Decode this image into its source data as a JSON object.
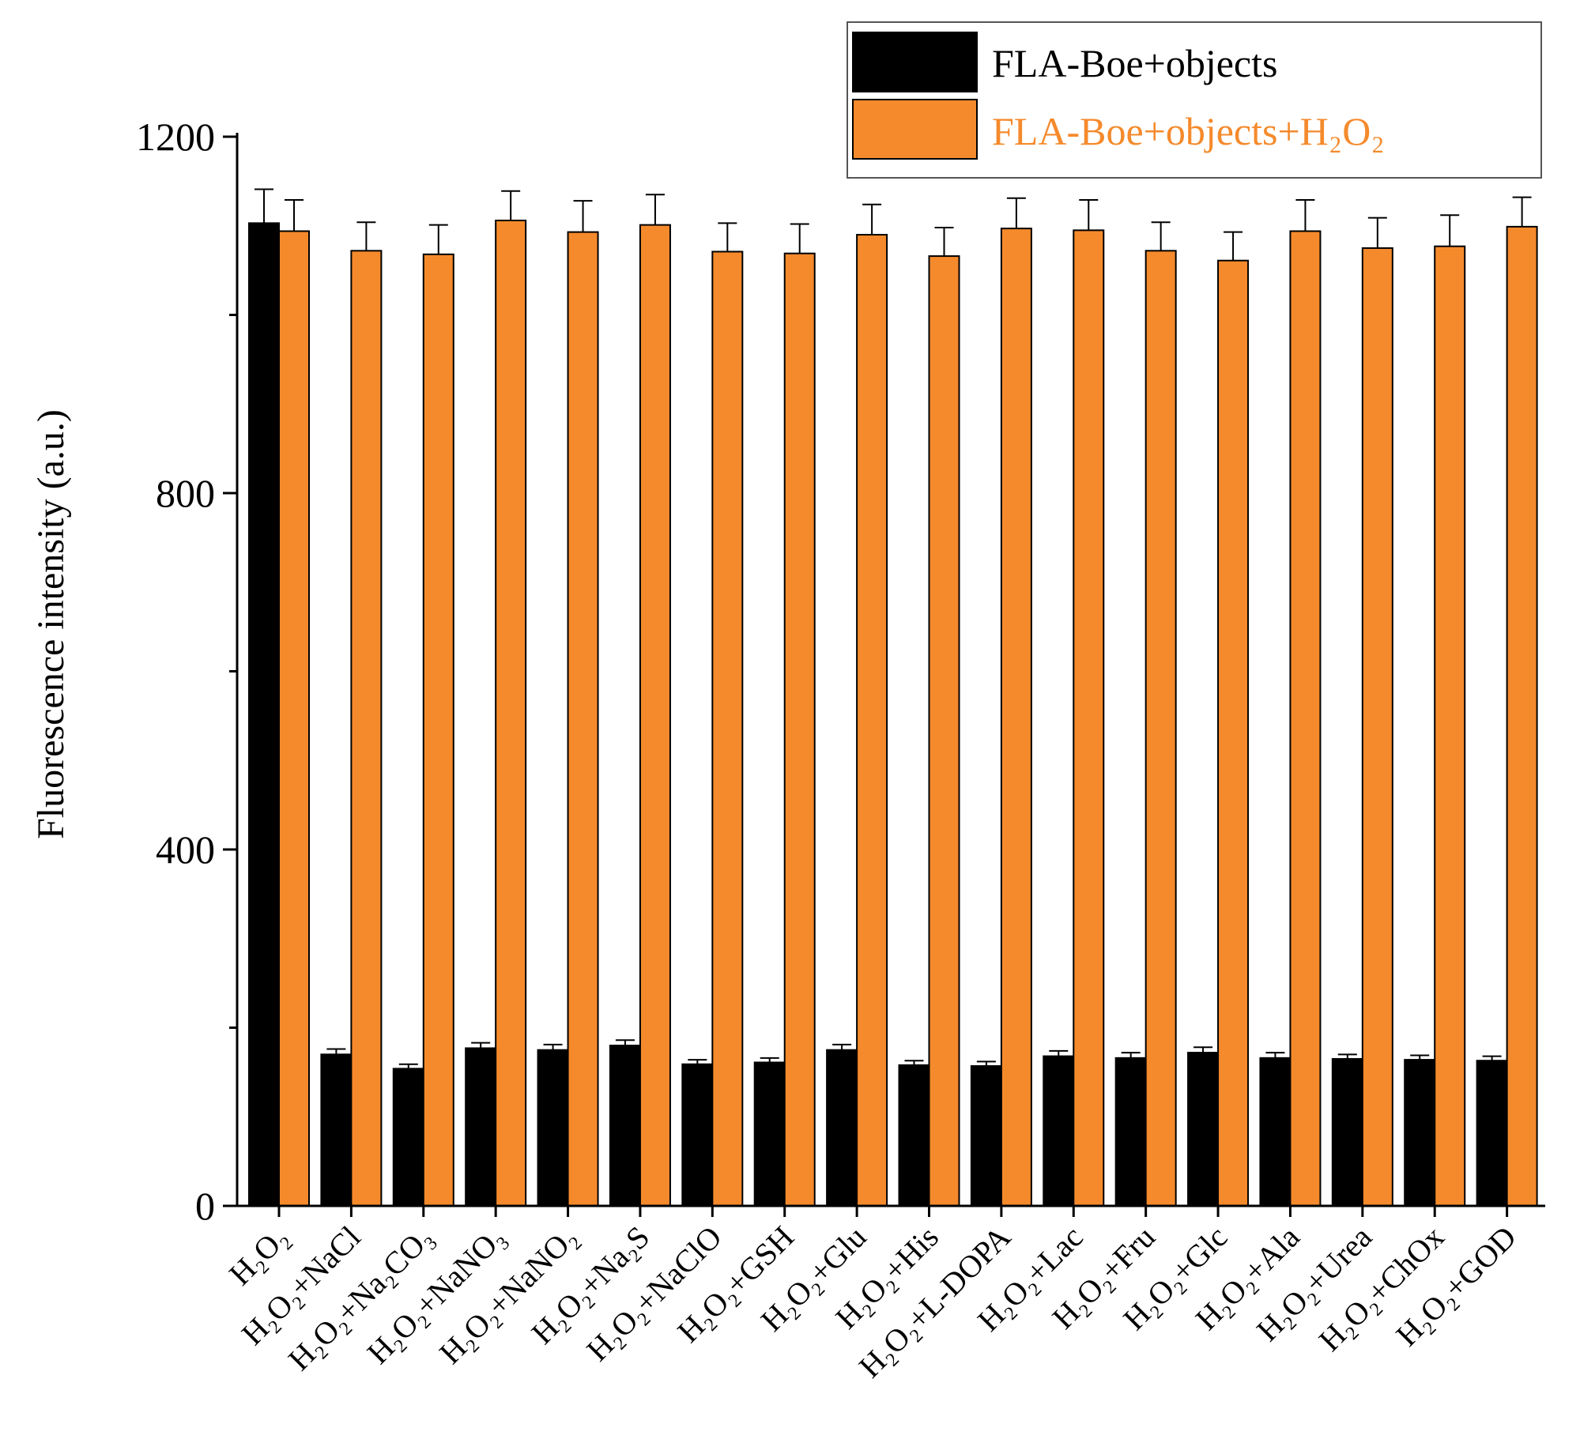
{
  "chart_data": {
    "type": "bar",
    "title": "",
    "xlabel": "",
    "ylabel": "Fluorescence intensity (a.u.)",
    "ylim": [
      0,
      1200
    ],
    "yticks": [
      0,
      400,
      800,
      1200
    ],
    "legend_position": "top-right",
    "colors": {
      "black": "#000000",
      "orange": "#F58A2C"
    },
    "categories": [
      "H₂O₂",
      "H₂O₂+NaCl",
      "H₂O₂+Na₂CO₃",
      "H₂O₂+NaNO₃",
      "H₂O₂+NaNO₂",
      "H₂O₂+Na₂S",
      "H₂O₂+NaClO",
      "H₂O₂+GSH",
      "H₂O₂+Glu",
      "H₂O₂+His",
      "H₂O₂+L-DOPA",
      "H₂O₂+Lac",
      "H₂O₂+Fru",
      "H₂O₂+Glc",
      "H₂O₂+Ala",
      "H₂O₂+Urea",
      "H₂O₂+ChOx",
      "H₂O₂+GOD"
    ],
    "series": [
      {
        "name": "FLA-Boe+objects",
        "color": "#000000",
        "values": [
          1103,
          170,
          154,
          177,
          175,
          180,
          159,
          161,
          175,
          158,
          157,
          168,
          166,
          172,
          166,
          165,
          164,
          163
        ],
        "errors": [
          38,
          6,
          5,
          6,
          6,
          6,
          5,
          5,
          6,
          5,
          5,
          6,
          6,
          6,
          6,
          5,
          5,
          5
        ]
      },
      {
        "name": "FLA-Boe+objects+H₂O₂",
        "color": "#F58A2C",
        "values": [
          1094,
          1072,
          1068,
          1106,
          1093,
          1101,
          1071,
          1069,
          1090,
          1066,
          1097,
          1095,
          1072,
          1061,
          1094,
          1075,
          1077,
          1099
        ],
        "errors": [
          35,
          32,
          33,
          33,
          35,
          34,
          32,
          33,
          34,
          32,
          34,
          34,
          32,
          32,
          35,
          34,
          35,
          33
        ]
      }
    ]
  }
}
